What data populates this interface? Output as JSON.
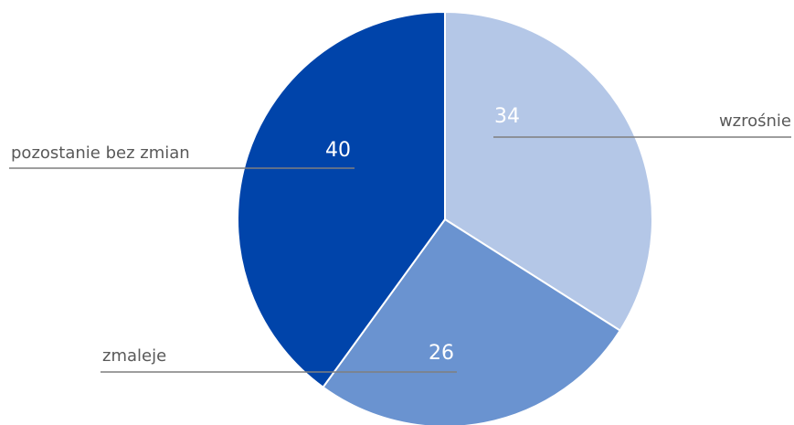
{
  "chart_data": {
    "type": "pie",
    "categories": [
      "wzrośnie",
      "zmaleje",
      "pozostanie bez zmian"
    ],
    "values": [
      34,
      26,
      40
    ],
    "colors": [
      "#b4c7e7",
      "#6a93d0",
      "#0044aa"
    ]
  }
}
